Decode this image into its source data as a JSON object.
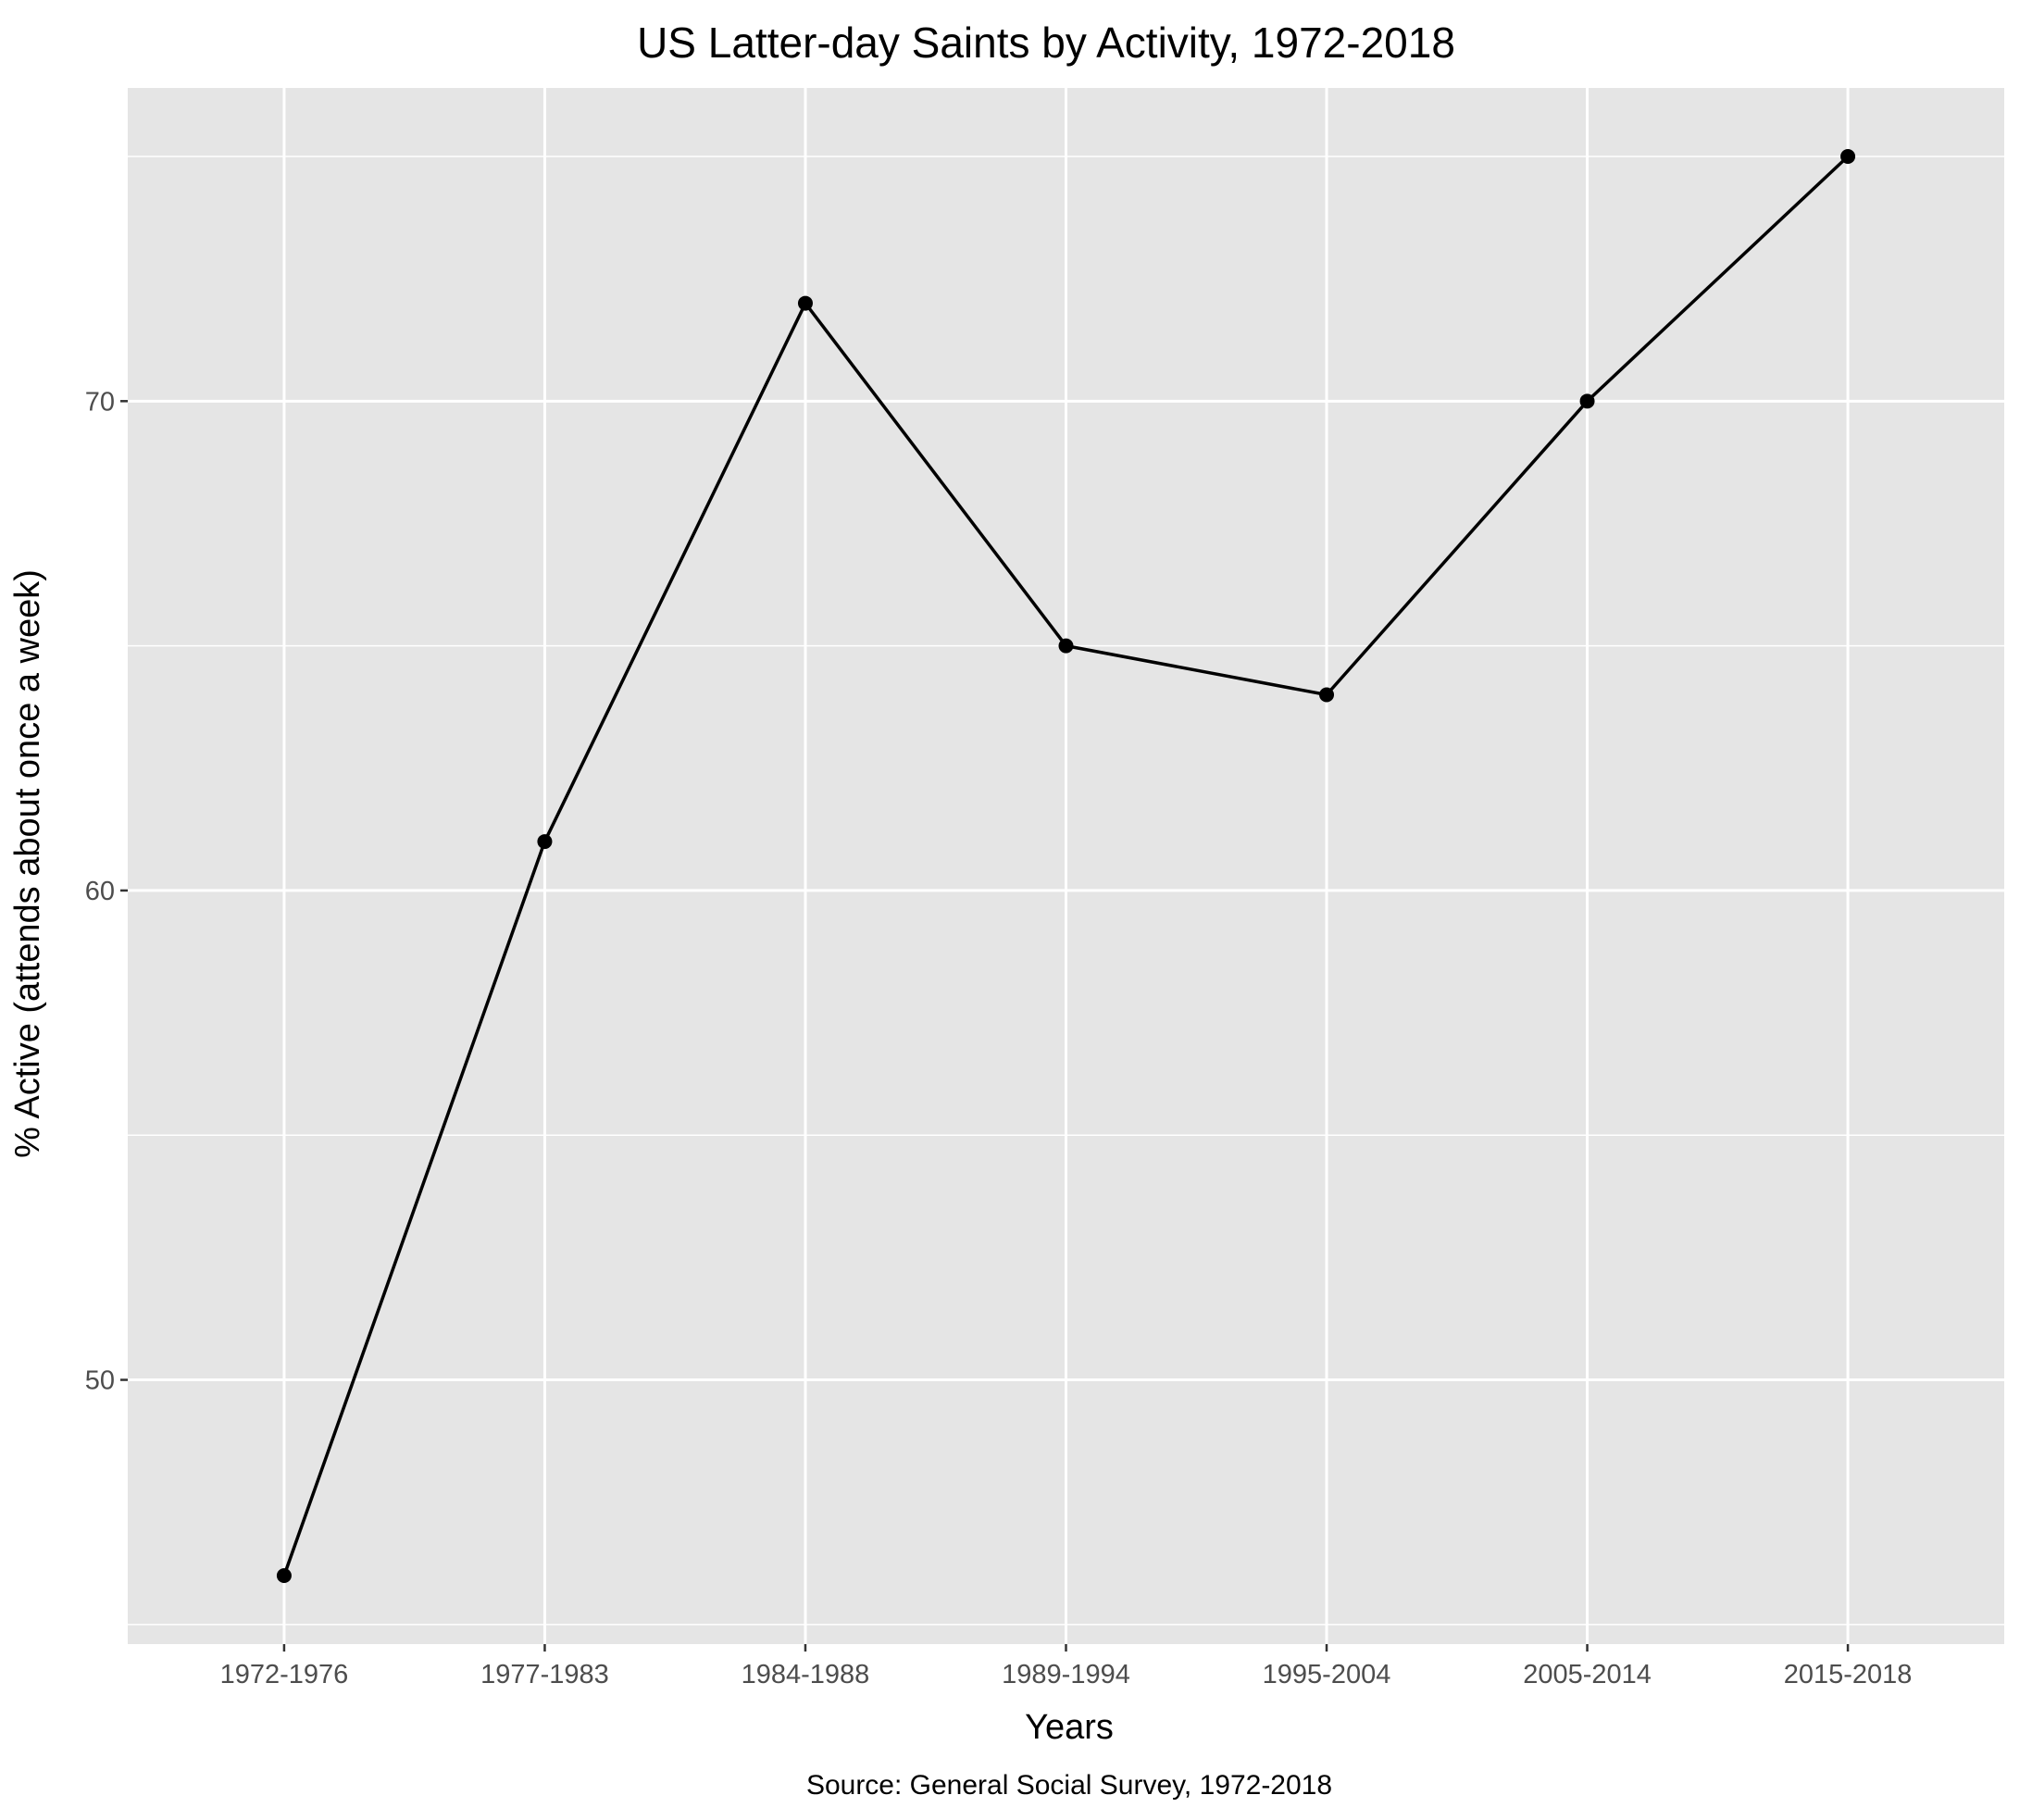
{
  "chart_data": {
    "type": "line",
    "title": "US Latter-day Saints by Activity, 1972-2018",
    "xlabel": "Years",
    "ylabel": "% Active (attends about once a week)",
    "caption": "Source: General Social Survey, 1972-2018",
    "categories": [
      "1972-1976",
      "1977-1983",
      "1984-1988",
      "1989-1994",
      "1995-2004",
      "2005-2014",
      "2015-2018"
    ],
    "values": [
      46.0,
      61.0,
      72.0,
      65.0,
      64.0,
      70.0,
      75.0
    ],
    "ylim": [
      44.6,
      76.4
    ],
    "yticks": [
      50,
      60,
      70
    ],
    "grid": true,
    "colors": {
      "panel": "#e5e5e5",
      "grid": "#ffffff",
      "line": "#000000",
      "axis_text": "#4d4d4d",
      "tick": "#333333"
    }
  }
}
